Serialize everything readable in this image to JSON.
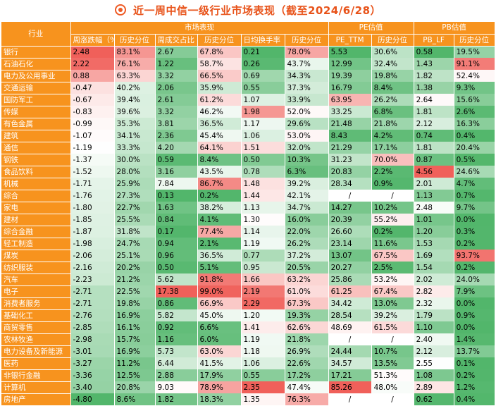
{
  "title": "近一周中信一级行业市场表现（截至2024/6/28）",
  "header": {
    "industry": "行业",
    "groups": [
      "市场表现",
      "PE估值",
      "PB估值"
    ],
    "columns": [
      "周涨跌幅（%）",
      "历史分位",
      "周成交占比（%）",
      "历史分位",
      "日均换手率（%）",
      "历史分位",
      "PE_TTM",
      "历史分位",
      "PB_LF",
      "历史分位"
    ]
  },
  "colors": {
    "orange": "#f7931e",
    "title": "#e8531a",
    "red": "#f0605a",
    "green": "#52b66b"
  },
  "chart_data": {
    "type": "heatmap",
    "columns": [
      "周涨跌幅（%）",
      "历史分位",
      "周成交占比（%）",
      "历史分位",
      "日均换手率（%）",
      "历史分位",
      "PE_TTM",
      "历史分位",
      "PB_LF",
      "历史分位"
    ],
    "rows": [
      {
        "name": "银行",
        "values": [
          "2.48",
          "83.1%",
          "2.67",
          "67.8%",
          "0.21",
          "78.0%",
          "5.53",
          "30.6%",
          "0.58",
          "19.5%"
        ]
      },
      {
        "name": "石油石化",
        "values": [
          "2.22",
          "76.1%",
          "1.22",
          "58.7%",
          "0.26",
          "43.7%",
          "12.99",
          "32.4%",
          "1.43",
          "91.1%"
        ]
      },
      {
        "name": "电力及公用事业",
        "values": [
          "0.88",
          "63.3%",
          "3.32",
          "66.5%",
          "0.69",
          "34.3%",
          "19.39",
          "19.8%",
          "1.82",
          "52.4%"
        ]
      },
      {
        "name": "交通运输",
        "values": [
          "-0.47",
          "40.2%",
          "2.06",
          "35.9%",
          "0.55",
          "37.3%",
          "16.79",
          "8.4%",
          "1.38",
          "9.3%"
        ]
      },
      {
        "name": "国防军工",
        "values": [
          "-0.67",
          "39.4%",
          "2.61",
          "61.2%",
          "1.07",
          "33.9%",
          "63.95",
          "26.2%",
          "2.64",
          "15.6%"
        ]
      },
      {
        "name": "传媒",
        "values": [
          "-0.83",
          "39.6%",
          "3.32",
          "46.2%",
          "1.98",
          "52.0%",
          "33.25",
          "6.8%",
          "1.81",
          "2.6%"
        ]
      },
      {
        "name": "有色金属",
        "values": [
          "-0.99",
          "35.3%",
          "3.81",
          "36.5%",
          "1.17",
          "29.6%",
          "21.48",
          "21.8%",
          "2.12",
          "16.3%"
        ]
      },
      {
        "name": "建筑",
        "values": [
          "-1.07",
          "34.1%",
          "2.36",
          "45.4%",
          "1.06",
          "53.0%",
          "8.43",
          "4.2%",
          "0.74",
          "0.4%"
        ]
      },
      {
        "name": "通信",
        "values": [
          "-1.19",
          "33.3%",
          "4.20",
          "64.1%",
          "1.51",
          "32.0%",
          "21.29",
          "17.1%",
          "1.81",
          "20.4%"
        ]
      },
      {
        "name": "钢铁",
        "values": [
          "-1.37",
          "30.0%",
          "0.59",
          "8.4%",
          "0.50",
          "10.3%",
          "31.23",
          "70.0%",
          "0.87",
          "0.5%"
        ]
      },
      {
        "name": "食品饮料",
        "values": [
          "-1.52",
          "28.0%",
          "3.16",
          "43.5%",
          "0.78",
          "6.3%",
          "20.83",
          "2.2%",
          "4.56",
          "24.6%"
        ]
      },
      {
        "name": "机械",
        "values": [
          "-1.71",
          "25.9%",
          "7.84",
          "86.7%",
          "1.48",
          "39.2%",
          "28.34",
          "0.9%",
          "2.01",
          "4.7%"
        ]
      },
      {
        "name": "综合",
        "values": [
          "-1.76",
          "27.3%",
          "0.13",
          "0.2%",
          "1.44",
          "42.1%",
          "/",
          "/",
          "1.13",
          "0.7%"
        ]
      },
      {
        "name": "家电",
        "values": [
          "-1.80",
          "22.7%",
          "1.63",
          "38.2%",
          "1.13",
          "34.7%",
          "14.27",
          "10.2%",
          "2.48",
          "9.7%"
        ]
      },
      {
        "name": "建材",
        "values": [
          "-1.85",
          "25.5%",
          "0.84",
          "4.1%",
          "1.30",
          "16.0%",
          "20.39",
          "55.2%",
          "1.01",
          "0.0%"
        ]
      },
      {
        "name": "综合金融",
        "values": [
          "-1.87",
          "31.8%",
          "0.17",
          "77.4%",
          "1.14",
          "22.0%",
          "26.60",
          "0.2%",
          "1.20",
          "0.3%"
        ]
      },
      {
        "name": "轻工制造",
        "values": [
          "-1.98",
          "24.7%",
          "0.94",
          "2.1%",
          "1.19",
          "26.2%",
          "23.14",
          "11.6%",
          "1.53",
          "0.2%"
        ]
      },
      {
        "name": "煤炭",
        "values": [
          "-2.06",
          "25.1%",
          "0.96",
          "36.5%",
          "0.77",
          "37.2%",
          "13.07",
          "67.5%",
          "1.69",
          "93.7%"
        ]
      },
      {
        "name": "纺织服装",
        "values": [
          "-2.16",
          "20.2%",
          "0.50",
          "5.1%",
          "0.95",
          "20.5%",
          "20.27",
          "2.5%",
          "1.54",
          "0.2%"
        ]
      },
      {
        "name": "汽车",
        "values": [
          "-2.23",
          "21.2%",
          "5.62",
          "91.8%",
          "1.66",
          "63.2%",
          "25.86",
          "53.2%",
          "2.02",
          "24.0%"
        ]
      },
      {
        "name": "电子",
        "values": [
          "-2.71",
          "22.5%",
          "17.38",
          "99.0%",
          "2.19",
          "61.0%",
          "61.25",
          "67.4%",
          "2.82",
          "7.9%"
        ]
      },
      {
        "name": "消费者服务",
        "values": [
          "-2.71",
          "19.8%",
          "0.86",
          "66.9%",
          "2.29",
          "67.3%",
          "34.42",
          "13.0%",
          "2.32",
          "0.0%"
        ]
      },
      {
        "name": "基础化工",
        "values": [
          "-2.76",
          "16.9%",
          "5.82",
          "45.0%",
          "1.20",
          "19.3%",
          "28.54",
          "39.2%",
          "1.79",
          "0.9%"
        ]
      },
      {
        "name": "商贸零售",
        "values": [
          "-2.85",
          "16.1%",
          "0.92",
          "6.6%",
          "1.41",
          "62.6%",
          "48.69",
          "61.5%",
          "1.10",
          "0.0%"
        ]
      },
      {
        "name": "农林牧渔",
        "values": [
          "-2.98",
          "15.7%",
          "1.16",
          "6.0%",
          "1.19",
          "21.8%",
          "/",
          "/",
          "2.40",
          "1.4%"
        ]
      },
      {
        "name": "电力设备及新能源",
        "values": [
          "-3.01",
          "16.9%",
          "5.73",
          "63.0%",
          "1.18",
          "26.9%",
          "24.44",
          "10.7%",
          "2.12",
          "13.7%"
        ]
      },
      {
        "name": "医药",
        "values": [
          "-3.27",
          "11.2%",
          "6.44",
          "41.5%",
          "1.06",
          "22.6%",
          "34.57",
          "13.5%",
          "2.55",
          "0.1%"
        ]
      },
      {
        "name": "非银行金融",
        "values": [
          "-3.36",
          "12.5%",
          "2.88",
          "17.9%",
          "0.55",
          "17.2%",
          "17.21",
          "51.3%",
          "1.08",
          "0.2%"
        ]
      },
      {
        "name": "计算机",
        "values": [
          "-3.40",
          "20.8%",
          "9.03",
          "78.9%",
          "2.35",
          "47.4%",
          "85.26",
          "48.0%",
          "2.89",
          "1.2%"
        ]
      },
      {
        "name": "房地产",
        "values": [
          "-4.80",
          "8.6%",
          "1.82",
          "18.3%",
          "1.35",
          "76.3%",
          "/",
          "/",
          "0.62",
          "0.4%"
        ]
      }
    ]
  }
}
